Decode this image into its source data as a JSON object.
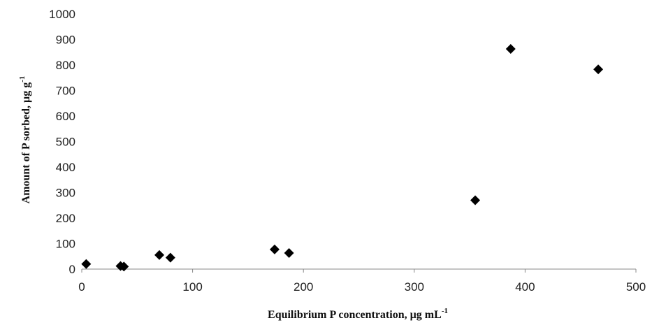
{
  "chart_data": {
    "type": "scatter",
    "xlabel": "Equilibrium P concentration, µg mL",
    "xlabel_superscript": "-1",
    "ylabel": "Amount of P sorbed, µg g",
    "ylabel_superscript": "-1",
    "xlim": [
      0,
      500
    ],
    "ylim": [
      0,
      1000
    ],
    "xticks": [
      0,
      100,
      200,
      300,
      400,
      500
    ],
    "yticks": [
      0,
      100,
      200,
      300,
      400,
      500,
      600,
      700,
      800,
      900,
      1000
    ],
    "grid": false,
    "marker": "diamond",
    "marker_color": "#000000",
    "series": [
      {
        "x": [
          4,
          35,
          38,
          70,
          80,
          174,
          187,
          355,
          387,
          466
        ],
        "y": [
          20,
          12,
          10,
          55,
          45,
          77,
          63,
          270,
          863,
          783
        ]
      }
    ]
  }
}
